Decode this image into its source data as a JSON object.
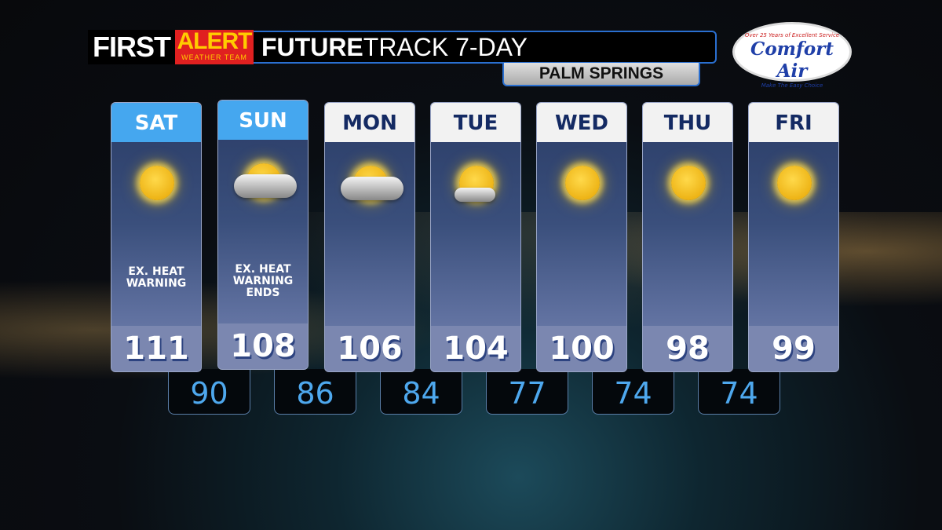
{
  "header": {
    "first": "FIRST",
    "alert": "ALERT",
    "team": "WEATHER TEAM",
    "title_bold": "FUTURE",
    "title_rest": "TRACK 7-DAY",
    "location": "PALM SPRINGS"
  },
  "sponsor": {
    "tagline": "Over 25 Years of Excellent Service",
    "name": "Comfort Air",
    "slogan": "Make The Easy Choice"
  },
  "colors": {
    "highlight_header": "#45a7ef",
    "low_text": "#4ea8ee",
    "title_border": "#2a6fd0"
  },
  "days": [
    {
      "day": "SAT",
      "icon": "sunny",
      "note": "EX. HEAT WARNING",
      "high": "111",
      "highlight": true
    },
    {
      "day": "SUN",
      "icon": "partly-cloudy",
      "note": "EX. HEAT WARNING ENDS",
      "high": "108",
      "highlight": true
    },
    {
      "day": "MON",
      "icon": "partly-cloudy",
      "note": "",
      "high": "106"
    },
    {
      "day": "TUE",
      "icon": "mostly-sunny",
      "note": "",
      "high": "104"
    },
    {
      "day": "WED",
      "icon": "sunny",
      "note": "",
      "high": "100"
    },
    {
      "day": "THU",
      "icon": "sunny",
      "note": "",
      "high": "98"
    },
    {
      "day": "FRI",
      "icon": "sunny",
      "note": "",
      "high": "99"
    }
  ],
  "lows": [
    "90",
    "86",
    "84",
    "77",
    "74",
    "74"
  ]
}
